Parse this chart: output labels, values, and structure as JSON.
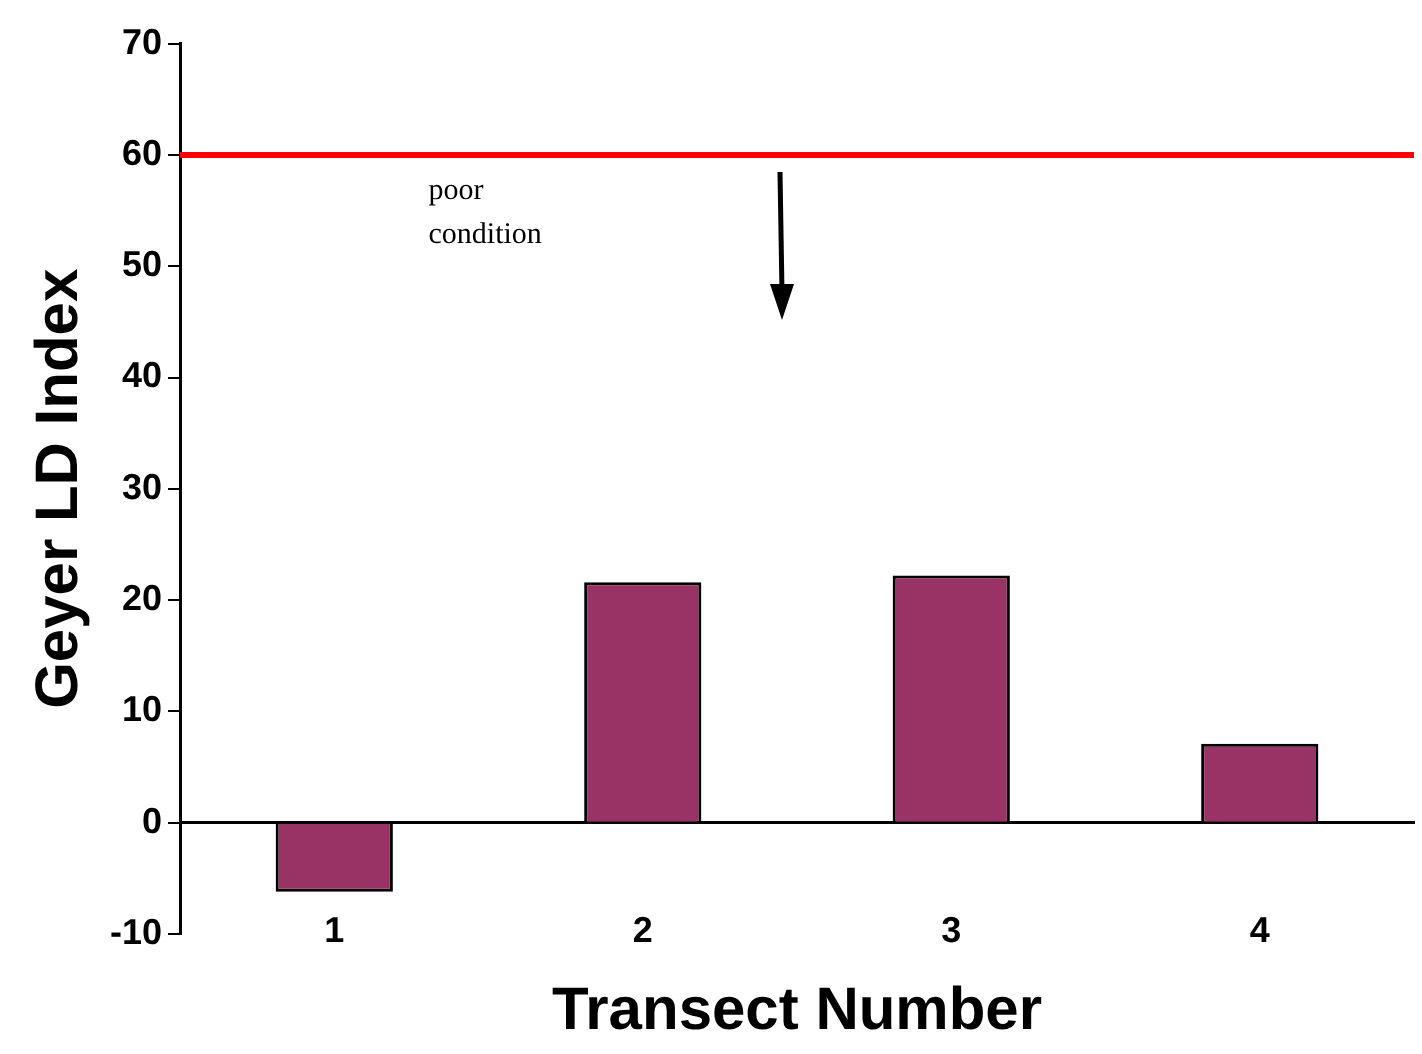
{
  "chart_data": {
    "type": "bar",
    "xlabel": "Transect Number",
    "ylabel": "Geyer LD Index",
    "categories": [
      "1",
      "2",
      "3",
      "4"
    ],
    "values": [
      -6.2,
      21.6,
      22.2,
      7.1
    ],
    "color": "#993366",
    "ylim": [
      -10,
      70
    ],
    "yticks": [
      -10,
      0,
      10,
      20,
      30,
      40,
      50,
      60,
      70
    ],
    "grid": false,
    "legend": false,
    "ref_lines": [
      {
        "axis": "y",
        "value": 60,
        "color": "#ff0000",
        "line_style": "solid"
      }
    ],
    "annotations": [
      "poor condition"
    ]
  }
}
